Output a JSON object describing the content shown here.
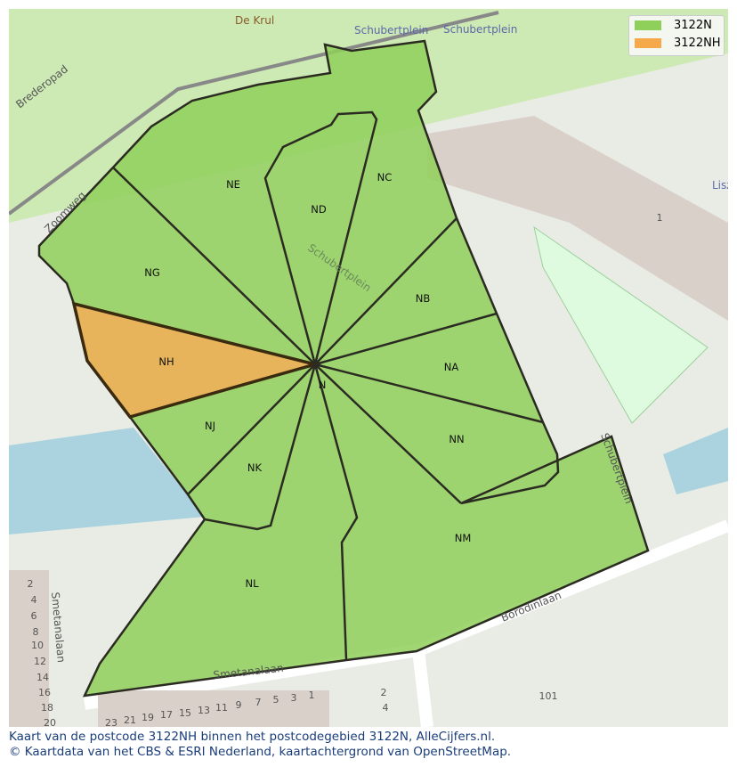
{
  "legend": [
    {
      "label": "3122N",
      "color": "#8fd05a"
    },
    {
      "label": "3122NH",
      "color": "#f5a94a"
    }
  ],
  "areas": [
    "NE",
    "ND",
    "NC",
    "NG",
    "NB",
    "NH",
    "NA",
    "N",
    "NJ",
    "NN",
    "NK",
    "NM",
    "NL"
  ],
  "streets": {
    "brederopad": "Brederopad",
    "zoomweg": "Zoomweg",
    "schubertplein1": "Schubertplein",
    "schubertplein2": "Schubertplein",
    "schubertplein_map": "Schubertplein",
    "de_krul": "De Krul",
    "smetanalaan": "Smetanalaan",
    "smetanalaan2": "Smetanalaan",
    "borodinlaan": "Borodinlaan",
    "schubertstreet": "Schubertplein",
    "lisz": "Lisz"
  },
  "house_numbers": [
    "2",
    "4",
    "6",
    "8",
    "10",
    "12",
    "14",
    "16",
    "18",
    "20",
    "23",
    "21",
    "19",
    "17",
    "15",
    "13",
    "11",
    "9",
    "7",
    "5",
    "3",
    "1",
    "2",
    "4",
    "101",
    "1"
  ],
  "caption": {
    "line1": "Kaart van de postcode 3122NH binnen het postcodegebied 3122N, AlleCijfers.nl.",
    "line2": "© Kaartdata van het CBS & ESRI Nederland, kaartachtergrond van OpenStreetMap."
  }
}
